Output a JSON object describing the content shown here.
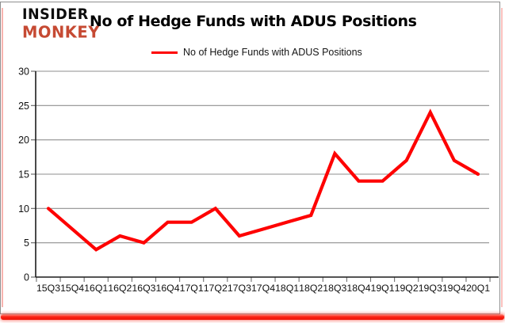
{
  "brand": {
    "line1": "INSIDER",
    "line2": "MONKEY"
  },
  "title": "No of Hedge Funds with ADUS Positions",
  "legend": {
    "label": "No of Hedge Funds with ADUS Positions",
    "color": "#fe0000"
  },
  "colors": {
    "series_line": "#fe0000",
    "brand_red": "#c64a33",
    "bottom_bar": "#f81a0d",
    "gridline": "#8f8f8f",
    "axis": "#1c1c1c",
    "tick": "#6e6e6e",
    "axis_text": "#111111"
  },
  "chart_data": {
    "type": "line",
    "title": "No of Hedge Funds with ADUS Positions",
    "categories": [
      "15Q3",
      "15Q4",
      "16Q1",
      "16Q2",
      "16Q3",
      "16Q4",
      "17Q1",
      "17Q2",
      "17Q3",
      "17Q4",
      "18Q1",
      "18Q2",
      "18Q3",
      "18Q4",
      "19Q1",
      "19Q2",
      "19Q3",
      "19Q4",
      "20Q1"
    ],
    "series": [
      {
        "name": "No of Hedge Funds with ADUS Positions",
        "color": "#fe0000",
        "values": [
          10,
          7,
          4,
          6,
          5,
          8,
          8,
          10,
          6,
          7,
          8,
          9,
          18,
          14,
          14,
          17,
          24,
          17,
          15
        ]
      }
    ],
    "xlabel": "",
    "ylabel": "",
    "ylim": [
      0,
      30
    ],
    "yticks": [
      0,
      5,
      10,
      15,
      20,
      25,
      30
    ],
    "grid": true,
    "legend_position": "top-center"
  }
}
